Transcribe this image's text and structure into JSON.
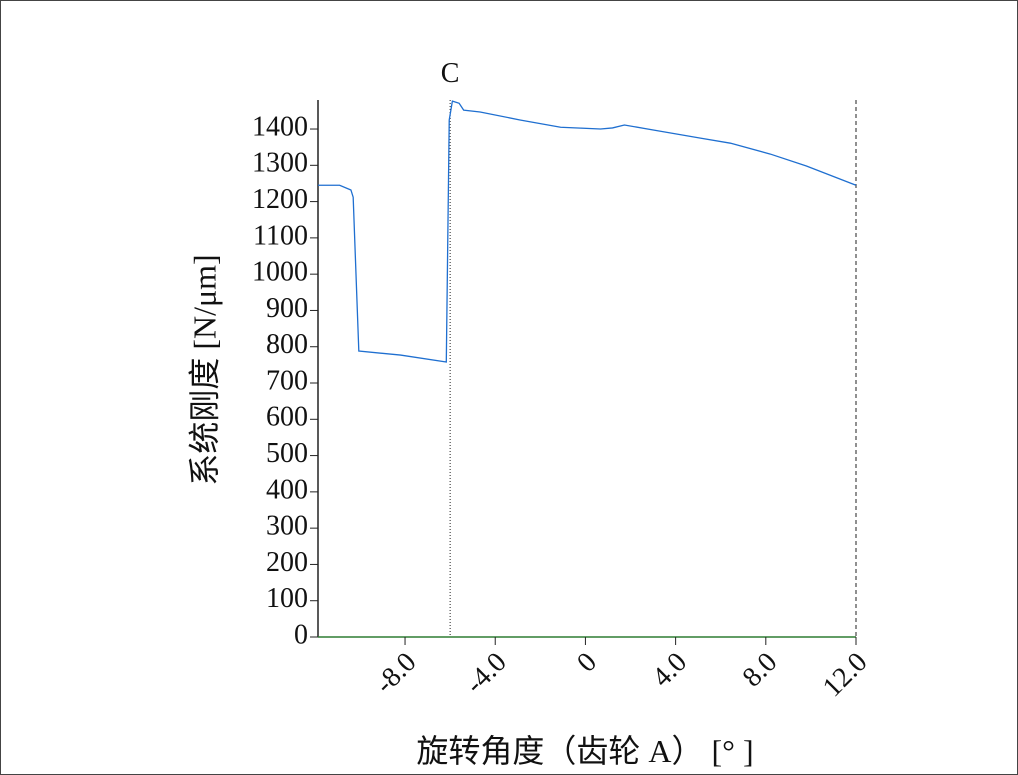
{
  "chart_data": {
    "type": "line",
    "x_label": "旋转角度（齿轮 A） [°  ]",
    "y_label": "系统刚度 [N/μm]",
    "xlim": [
      -11.86,
      12
    ],
    "ylim": [
      0,
      1480
    ],
    "xticks": [
      {
        "value": -8,
        "label": "-8.0"
      },
      {
        "value": -4,
        "label": "-4.0"
      },
      0,
      {
        "value": 4,
        "label": "4.0"
      },
      {
        "value": 8,
        "label": "8.0"
      },
      {
        "value": 12,
        "label": "12.0"
      }
    ],
    "yticks": [
      0,
      100,
      200,
      300,
      400,
      500,
      600,
      700,
      800,
      900,
      1000,
      1100,
      1200,
      1300,
      1400
    ],
    "vlines": [
      {
        "x": -6,
        "label": "C",
        "style": "dotted"
      },
      {
        "x": 12,
        "style": "dashed"
      }
    ],
    "baseline_color": "#2e7d32",
    "series": [
      {
        "color": "#1f6fd0",
        "x": [
          -11.86,
          -10.9,
          -10.4,
          -10.3,
          -10.05,
          -8.2,
          -6.17,
          -6.04,
          -5.9,
          -5.6,
          -5.4,
          -4.67,
          -2.9,
          -1.1,
          0.67,
          1.2,
          1.73,
          3.33,
          5.1,
          6.43,
          8.2,
          9.8,
          12
        ],
        "values": [
          1245,
          1245,
          1232,
          1212,
          788,
          777,
          758,
          1425,
          1477,
          1471,
          1452,
          1447,
          1425,
          1405,
          1400,
          1403,
          1411,
          1394,
          1375,
          1361,
          1331,
          1298,
          1245
        ]
      }
    ]
  }
}
